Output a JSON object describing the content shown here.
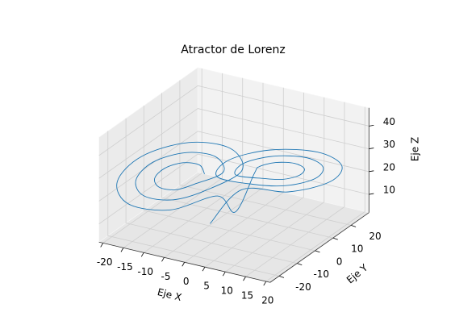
{
  "chart_data": {
    "type": "line3d",
    "title": "Atractor de Lorenz",
    "xlabel": "Eje X",
    "ylabel": "Eje Y",
    "zlabel": "Eje Z",
    "color": "#1f77b4",
    "xlim": [
      -21,
      21
    ],
    "ylim": [
      -25,
      30
    ],
    "zlim": [
      2,
      48
    ],
    "xticks": [
      -20,
      -15,
      -10,
      -5,
      0,
      5,
      10,
      15,
      20
    ],
    "yticks": [
      -20,
      -10,
      0,
      10,
      20
    ],
    "zticks": [
      10,
      20,
      30,
      40
    ],
    "grid": true,
    "x": [
      -4.5,
      -5.7,
      -8.5,
      -11.3,
      -12.5,
      -11.3,
      -8.5,
      -5.7,
      -1.5,
      -3.5,
      -8.5,
      -13.5,
      -15.5,
      -13.5,
      -8.5,
      -3.5,
      1.5,
      -1.4,
      -8.5,
      -15.6,
      -18.5,
      -15.6,
      -8.5,
      -1.4,
      1,
      4.5,
      5.7,
      8.5,
      11.3,
      12.5,
      11.3,
      8.5,
      5.7,
      1.5,
      3.5,
      8.5,
      13.5,
      15.5,
      13.5,
      8.5,
      3.5,
      -1.5,
      1.4,
      8.5,
      15.6,
      18.5,
      15.6,
      8.5,
      1.4,
      -3
    ],
    "y": [
      -3.7,
      -3.7,
      -6.5,
      -10.5,
      -13.3,
      -13.3,
      -10.5,
      -6.5,
      -0.1,
      0,
      -5,
      -12,
      -16.9,
      -17,
      -12,
      -5,
      3.5,
      3.6,
      -3.5,
      -13.5,
      -20.5,
      -20.6,
      -13.5,
      -3.5,
      1,
      3.7,
      3.7,
      6.5,
      10.5,
      13.3,
      13.3,
      10.5,
      6.5,
      0.1,
      0,
      5,
      12,
      16.9,
      17,
      12,
      5,
      -3.5,
      -3.6,
      3.5,
      13.5,
      20.5,
      20.6,
      13.5,
      3.5,
      -4
    ],
    "z": [
      27,
      30.4,
      31.8,
      30.4,
      27,
      23.6,
      22.2,
      23.6,
      27,
      33,
      35.4,
      33,
      27,
      21,
      18.6,
      21,
      27,
      35.5,
      39,
      35.5,
      27,
      18.5,
      15,
      18.5,
      10,
      27,
      30.4,
      31.8,
      30.4,
      27,
      23.6,
      22.2,
      23.6,
      27,
      33,
      35.4,
      33,
      27,
      21,
      18.6,
      21,
      27,
      35.5,
      39,
      35.5,
      27,
      18.5,
      15,
      18.5,
      6
    ]
  }
}
